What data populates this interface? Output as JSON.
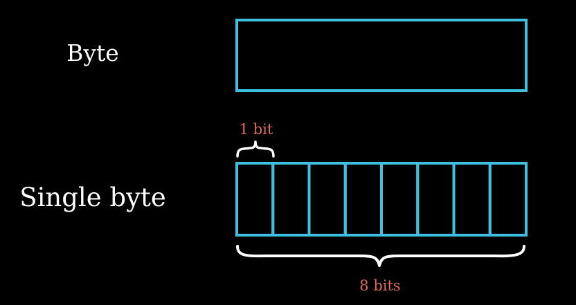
{
  "labels": {
    "byte": "Byte",
    "single_byte": "Single byte",
    "one_bit": "1 bit",
    "eight_bits": "8 bits"
  },
  "byte_cells": 8,
  "colors": {
    "background": "#000000",
    "box": "#3fc0e0",
    "text": "#ffffff",
    "accent": "#e06a5f",
    "brace": "#ffffff"
  }
}
